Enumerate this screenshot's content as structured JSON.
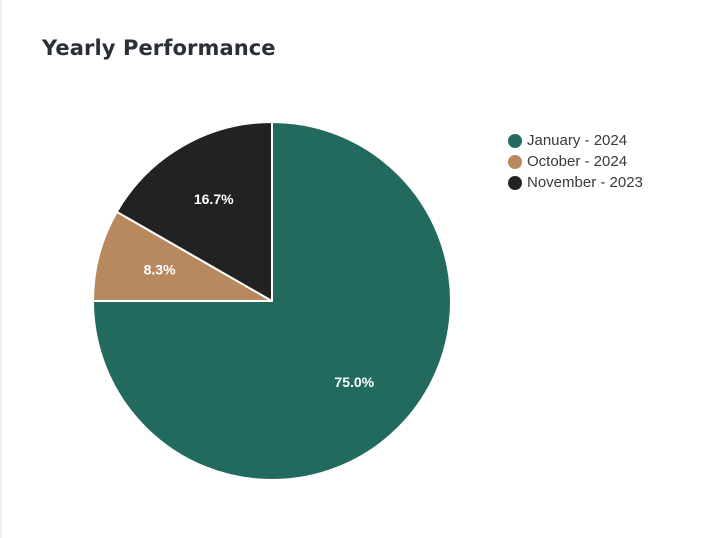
{
  "card": {
    "title": "Yearly Performance"
  },
  "chart_data": {
    "type": "pie",
    "title": "Yearly Performance",
    "legend_position": "right",
    "slices": [
      {
        "label": "January - 2024",
        "value": 75.0,
        "display": "75.0%",
        "color": "#236a5e"
      },
      {
        "label": "October - 2024",
        "value": 8.3,
        "display": "8.3%",
        "color": "#b8895f"
      },
      {
        "label": "November - 2023",
        "value": 16.7,
        "display": "16.7%",
        "color": "#222222"
      }
    ]
  }
}
